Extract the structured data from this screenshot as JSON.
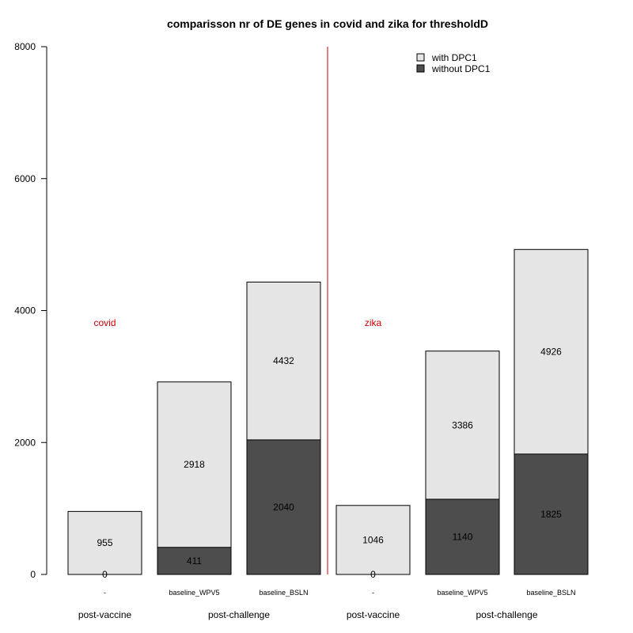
{
  "chart_data": {
    "type": "bar",
    "stacked": true,
    "title": "comparisson nr of DE genes in covid and zika for thresholdD",
    "xlabel": "",
    "ylabel": "",
    "ylim": [
      0,
      8000
    ],
    "yticks": [
      0,
      2000,
      4000,
      6000,
      8000
    ],
    "grid": false,
    "legend_position": "top-right",
    "colors": {
      "with_dpc1": "#e5e5e5",
      "without_dpc1": "#4d4d4d",
      "divider": "#cc0000",
      "panel_label": "#cc0000"
    },
    "series": [
      {
        "name": "with DPC1",
        "values": [
          955,
          2918,
          4432,
          1046,
          3386,
          4926
        ]
      },
      {
        "name": "without DPC1",
        "values": [
          0,
          411,
          2040,
          0,
          1140,
          1825
        ]
      }
    ],
    "categories": [
      "-",
      "baseline_WPV5",
      "baseline_BSLN",
      "-",
      "baseline_WPV5",
      "baseline_BSLN"
    ],
    "panels": [
      {
        "label": "covid",
        "bar_indices": [
          0,
          1,
          2
        ]
      },
      {
        "label": "zika",
        "bar_indices": [
          3,
          4,
          5
        ]
      }
    ],
    "group_labels": [
      {
        "text": "post-vaccine",
        "bar_indices": [
          0
        ]
      },
      {
        "text": "post-challenge",
        "bar_indices": [
          1,
          2
        ]
      },
      {
        "text": "post-vaccine",
        "bar_indices": [
          3
        ]
      },
      {
        "text": "post-challenge",
        "bar_indices": [
          4,
          5
        ]
      }
    ]
  }
}
